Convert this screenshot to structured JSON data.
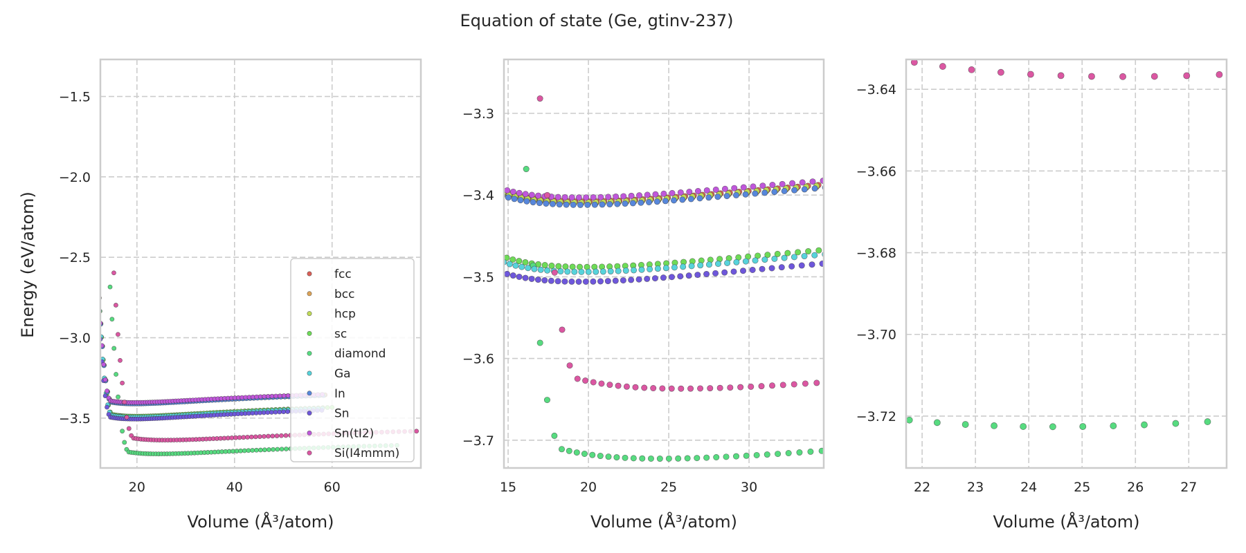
{
  "chart_data": {
    "type": "scatter",
    "title": "Equation of state (Ge, gtinv-237)",
    "ylabel": "Energy (eV/atom)",
    "xlabel": "Volume (Å³/atom)",
    "legend": {
      "placement": "lower-right",
      "panel": 1
    },
    "grid": true,
    "panels": [
      {
        "id": "full-range",
        "xlim": [
          12.5,
          78.2
        ],
        "ylim": [
          -3.81,
          -1.27
        ],
        "xticks": [
          20,
          40,
          60
        ],
        "xtick_labels": [
          "20",
          "40",
          "60"
        ],
        "yticks": [
          -1.5,
          -2.0,
          -2.5,
          -3.0,
          -3.5
        ],
        "ytick_labels": [
          "−1.5",
          "−2.0",
          "−2.5",
          "−3.0",
          "−3.5"
        ]
      },
      {
        "id": "zoom-minima",
        "xlim": [
          14.74,
          34.65
        ],
        "ylim": [
          -3.734,
          -3.234
        ],
        "xticks": [
          15,
          20,
          25,
          30
        ],
        "xtick_labels": [
          "15",
          "20",
          "25",
          "30"
        ],
        "yticks": [
          -3.3,
          -3.4,
          -3.5,
          -3.6,
          -3.7
        ],
        "ytick_labels": [
          "−3.3",
          "−3.4",
          "−3.5",
          "−3.6",
          "−3.7"
        ]
      },
      {
        "id": "zoom-diamond",
        "xlim": [
          21.7,
          27.71
        ],
        "ylim": [
          -3.7327,
          -3.6327
        ],
        "xticks": [
          22,
          23,
          24,
          25,
          26,
          27
        ],
        "xtick_labels": [
          "22",
          "23",
          "24",
          "25",
          "26",
          "27"
        ],
        "yticks": [
          -3.64,
          -3.66,
          -3.68,
          -3.7,
          -3.72
        ],
        "ytick_labels": [
          "−3.64",
          "−3.66",
          "−3.68",
          "−3.70",
          "−3.72"
        ]
      }
    ],
    "series": [
      {
        "name": "fcc",
        "color": "#db5f57",
        "E0": -3.408,
        "V0": 19.65,
        "B": 0.0105,
        "Bp": 4.6,
        "Vmax": 58.6
      },
      {
        "name": "bcc",
        "color": "#dba257",
        "E0": -3.41,
        "V0": 19.6,
        "B": 0.0105,
        "Bp": 4.6,
        "Vmax": 58.4
      },
      {
        "name": "hcp",
        "color": "#c0db57",
        "E0": -3.409,
        "V0": 19.6,
        "B": 0.0105,
        "Bp": 4.6,
        "Vmax": 58.4
      },
      {
        "name": "sc",
        "color": "#6edb57",
        "E0": -3.488,
        "V0": 19.85,
        "B": 0.0107,
        "Bp": 4.6,
        "Vmax": 60.0
      },
      {
        "name": "diamond",
        "color": "#57db80",
        "E0": -3.7226,
        "V0": 24.45,
        "B": 0.0088,
        "Bp": 4.7,
        "Vmax": 73.3
      },
      {
        "name": "Ga",
        "color": "#57d3db",
        "E0": -3.494,
        "V0": 19.7,
        "B": 0.0108,
        "Bp": 4.6,
        "Vmax": 58.0
      },
      {
        "name": "In",
        "color": "#5787db",
        "E0": -3.412,
        "V0": 19.55,
        "B": 0.0105,
        "Bp": 4.6,
        "Vmax": 58.2
      },
      {
        "name": "Sn",
        "color": "#6e57db",
        "E0": -3.506,
        "V0": 19.45,
        "B": 0.011,
        "Bp": 4.6,
        "Vmax": 57.9
      },
      {
        "name": "Sn(tI2)",
        "color": "#c057db",
        "E0": -3.403,
        "V0": 19.45,
        "B": 0.0102,
        "Bp": 4.6,
        "Vmax": 58.0
      },
      {
        "name": "Si(I4mmm)",
        "color": "#db57a2",
        "E0": -3.6369,
        "V0": 25.75,
        "B": 0.0087,
        "Bp": 4.7,
        "Vmax": 77.3
      }
    ],
    "sampling": {
      "scale_min": 0.84,
      "scale_max_from_Vmax": true,
      "n_points": 80
    }
  }
}
